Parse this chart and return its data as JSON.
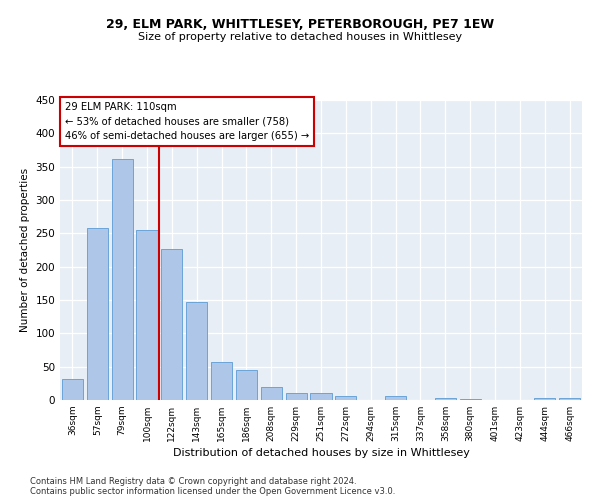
{
  "title1": "29, ELM PARK, WHITTLESEY, PETERBOROUGH, PE7 1EW",
  "title2": "Size of property relative to detached houses in Whittlesey",
  "xlabel": "Distribution of detached houses by size in Whittlesey",
  "ylabel": "Number of detached properties",
  "footnote1": "Contains HM Land Registry data © Crown copyright and database right 2024.",
  "footnote2": "Contains public sector information licensed under the Open Government Licence v3.0.",
  "annotation_line1": "29 ELM PARK: 110sqm",
  "annotation_line2": "← 53% of detached houses are smaller (758)",
  "annotation_line3": "46% of semi-detached houses are larger (655) →",
  "categories": [
    "36sqm",
    "57sqm",
    "79sqm",
    "100sqm",
    "122sqm",
    "143sqm",
    "165sqm",
    "186sqm",
    "208sqm",
    "229sqm",
    "251sqm",
    "272sqm",
    "294sqm",
    "315sqm",
    "337sqm",
    "358sqm",
    "380sqm",
    "401sqm",
    "423sqm",
    "444sqm",
    "466sqm"
  ],
  "values": [
    32,
    258,
    362,
    255,
    227,
    147,
    57,
    45,
    19,
    10,
    10,
    6,
    0,
    6,
    0,
    3,
    2,
    0,
    0,
    3,
    3
  ],
  "bar_color": "#aec6e8",
  "bar_edge_color": "#5b9bd5",
  "marker_color": "#cc0000",
  "box_color": "#cc0000",
  "bg_color": "#e8eef5",
  "ylim": [
    0,
    450
  ],
  "yticks": [
    0,
    50,
    100,
    150,
    200,
    250,
    300,
    350,
    400,
    450
  ]
}
